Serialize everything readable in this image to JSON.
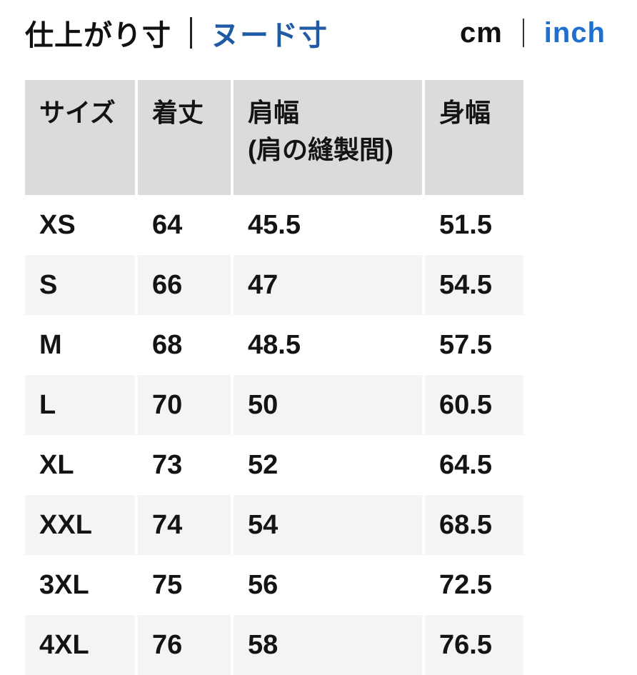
{
  "header": {
    "measure_tabs": [
      {
        "label": "仕上がり寸",
        "active": true
      },
      {
        "label": "ヌード寸",
        "active": false
      }
    ],
    "unit_tabs": [
      {
        "label": "cm",
        "active": true
      },
      {
        "label": "inch",
        "active": false
      }
    ]
  },
  "colors": {
    "active_text": "#111111",
    "measure_link_blue": "#215aa4",
    "unit_link_blue": "#1d70cf",
    "header_cell_bg": "#dbdbdb",
    "alt_row_bg": "#f4f4f4",
    "cell_text": "#141414"
  },
  "table": {
    "columns": [
      {
        "label": "サイズ",
        "sub": ""
      },
      {
        "label": "着丈",
        "sub": ""
      },
      {
        "label": "肩幅",
        "sub": "(肩の縫製間)"
      },
      {
        "label": "身幅",
        "sub": ""
      }
    ],
    "rows": [
      {
        "size": "XS",
        "values": [
          "64",
          "45.5",
          "51.5"
        ]
      },
      {
        "size": "S",
        "values": [
          "66",
          "47",
          "54.5"
        ]
      },
      {
        "size": "M",
        "values": [
          "68",
          "48.5",
          "57.5"
        ]
      },
      {
        "size": "L",
        "values": [
          "70",
          "50",
          "60.5"
        ]
      },
      {
        "size": "XL",
        "values": [
          "73",
          "52",
          "64.5"
        ]
      },
      {
        "size": "XXL",
        "values": [
          "74",
          "54",
          "68.5"
        ]
      },
      {
        "size": "3XL",
        "values": [
          "75",
          "56",
          "72.5"
        ]
      },
      {
        "size": "4XL",
        "values": [
          "76",
          "58",
          "76.5"
        ]
      }
    ]
  }
}
